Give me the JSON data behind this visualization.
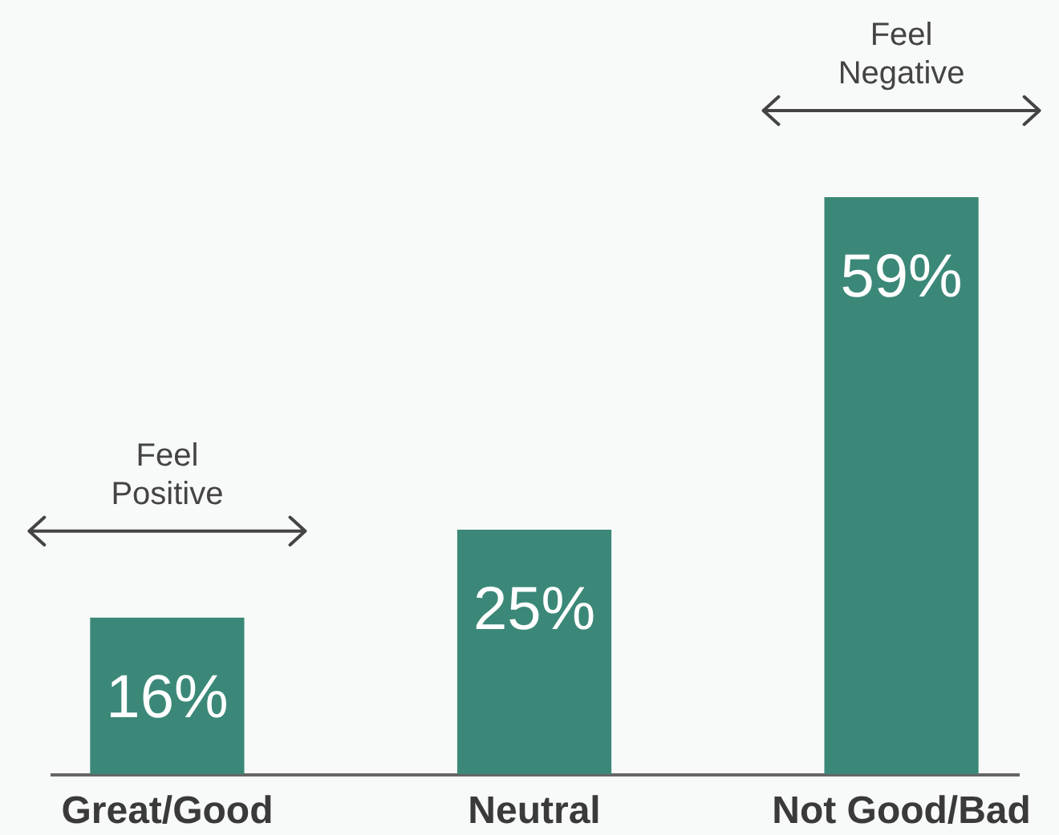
{
  "chart_data": {
    "type": "bar",
    "categories": [
      "Great/Good",
      "Neutral",
      "Not Good/Bad"
    ],
    "values": [
      16,
      25,
      59
    ],
    "color": "#3b8878",
    "value_labels": [
      "16%",
      "25%",
      "59%"
    ],
    "annotations": [
      "Feel Positive",
      "Feel Negative"
    ]
  }
}
